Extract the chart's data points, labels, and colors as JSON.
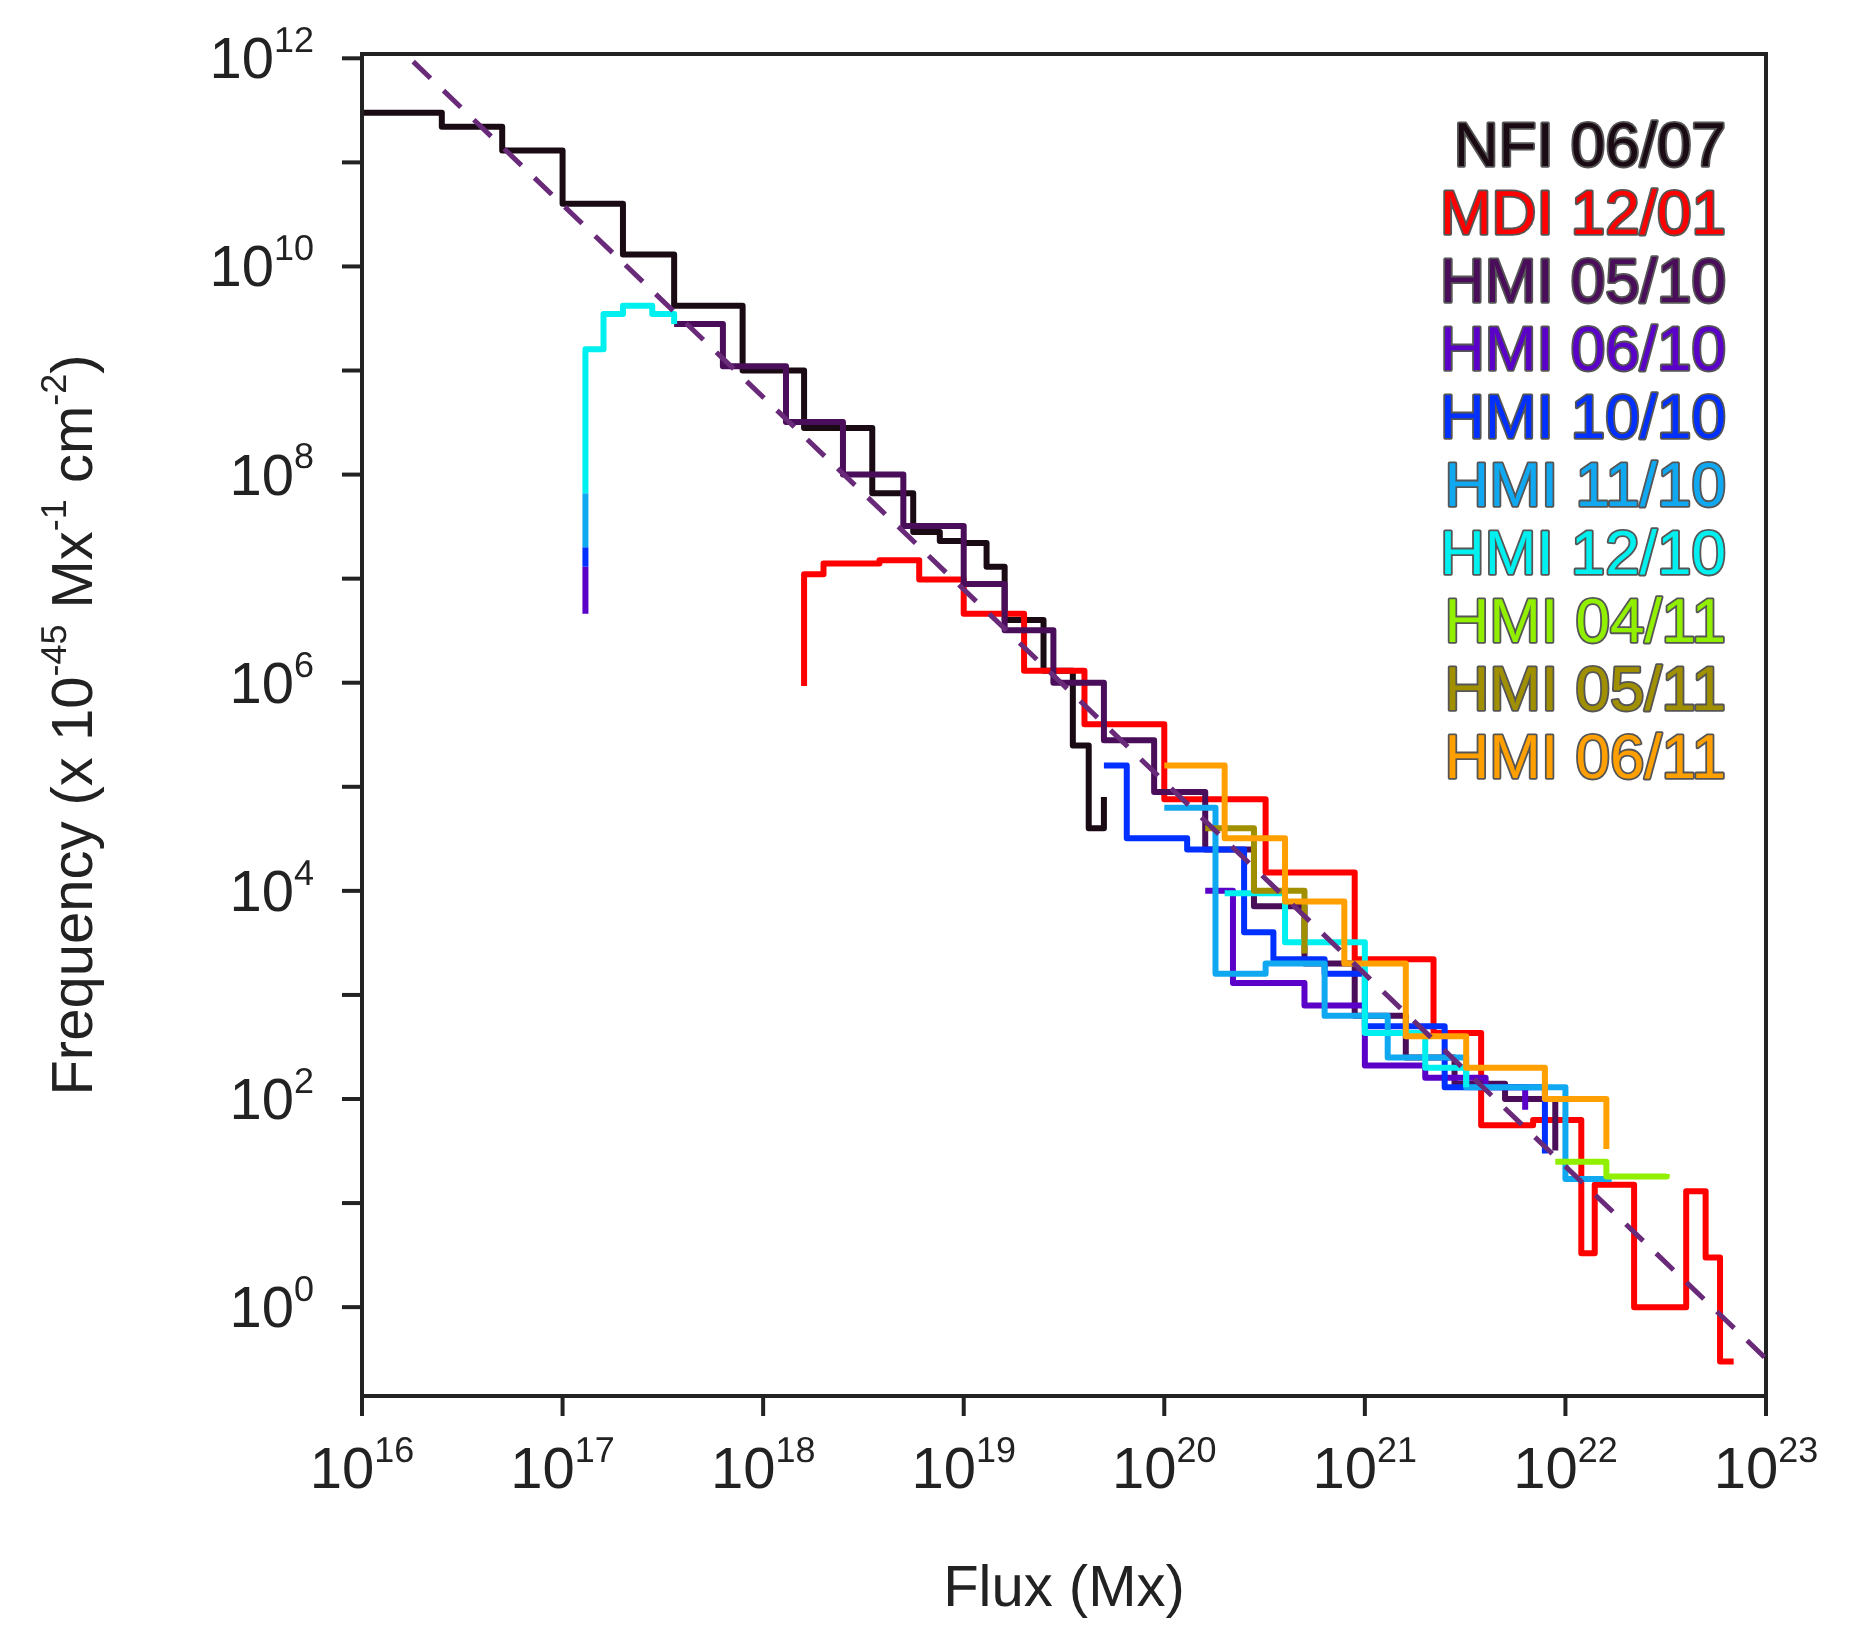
{
  "chart_data": {
    "type": "step",
    "xlabel": "Flux (Mx)",
    "ylabel": "Frequency (x 10$^{-45}$ Mx$^{-1}$ cm$^{-2}$)",
    "log": "xy",
    "xlim": [
      1e+16,
      1e+23
    ],
    "ylim": [
      0.14,
      1100000000000.0
    ],
    "xticks": [
      {
        "value": 1e+16,
        "label": "10$^{16}$"
      },
      {
        "value": 1e+17,
        "label": "10$^{17}$"
      },
      {
        "value": 1e+18,
        "label": "10$^{18}$"
      },
      {
        "value": 1e+19,
        "label": "10$^{19}$"
      },
      {
        "value": 1e+20,
        "label": "10$^{20}$"
      },
      {
        "value": 1e+21,
        "label": "10$^{21}$"
      },
      {
        "value": 1e+22,
        "label": "10$^{22}$"
      },
      {
        "value": 1e+23,
        "label": "10$^{23}$"
      }
    ],
    "yticks": [
      {
        "value": 1,
        "label": "10$^{0}$"
      },
      {
        "value": 10,
        "label": null
      },
      {
        "value": 100,
        "label": "10$^{2}$"
      },
      {
        "value": 1000,
        "label": null
      },
      {
        "value": 10000,
        "label": "10$^{4}$"
      },
      {
        "value": 100000,
        "label": null
      },
      {
        "value": 1000000,
        "label": "10$^{6}$"
      },
      {
        "value": 10000000,
        "label": null
      },
      {
        "value": 100000000,
        "label": "10$^{8}$"
      },
      {
        "value": 1000000000,
        "label": null
      },
      {
        "value": 10000000000,
        "label": "10$^{10}$"
      },
      {
        "value": 100000000000,
        "label": null
      },
      {
        "value": 1000000000000,
        "label": "10$^{12}$"
      }
    ],
    "series": [
      {
        "name": "NFI 06/07",
        "color": "#1a0a14",
        "x": [
          1e+16,
          1.6e+16,
          2.5e+16,
          5e+16,
          1e+17,
          2e+17,
          3.6e+17,
          7.9e+17,
          1.6e+18,
          3.5e+18,
          5.6e+18,
          7.6e+18,
          1e+19,
          1.3e+19,
          1.6e+19,
          2.5e+19,
          3.5e+19,
          4.2e+19,
          5e+19
        ],
        "values": [
          300000000000.0,
          300000000000.0,
          220000000000.0,
          130000000000.0,
          40000000000.0,
          13000000000.0,
          4200000000.0,
          1000000000.0,
          280000000.0,
          66000000.0,
          28000000.0,
          23000000.0,
          22000000.0,
          13000000.0,
          4000000.0,
          1300000.0,
          250000.0,
          40000.0,
          80000.0
        ]
      },
      {
        "name": "MDI 12/01",
        "color": "#ff0000",
        "x": [
          1.6e+18,
          1.6e+18,
          2e+18,
          3.8e+18,
          6e+18,
          1e+19,
          2e+19,
          4e+19,
          1e+20,
          3.2e+20,
          8.9e+20,
          2.2e+21,
          3.8e+21,
          6.9e+21,
          1.2e+22,
          1.4e+22,
          2.2e+22,
          4e+22,
          5e+22,
          5.9e+22,
          6.9e+22
        ],
        "values": [
          930000.0,
          11000000.0,
          14000000.0,
          15000000.0,
          9800000.0,
          4600000.0,
          1300000.0,
          400000.0,
          76000.0,
          15000.0,
          2200,
          430,
          56,
          63,
          3.3,
          15,
          1,
          13,
          3,
          0.3,
          0.3
        ]
      },
      {
        "name": "HMI 05/10",
        "color": "#4a0d5a",
        "x": [
          3.6e+17,
          6.3e+17,
          1.3e+18,
          2.5e+18,
          5e+18,
          1e+19,
          1.6e+19,
          2.8e+19,
          5e+19,
          8.9e+19,
          1.6e+20,
          2.8e+20,
          5e+20,
          8.9e+20,
          1.6e+21,
          2.8e+21,
          5e+21,
          8.9e+21
        ],
        "values": [
          2800000000.0,
          1100000000.0,
          320000000.0,
          100000000.0,
          32000000.0,
          8900000.0,
          3200000.0,
          1000000.0,
          280000.0,
          89000.0,
          25000.0,
          7100,
          2000,
          630,
          250,
          140,
          100,
          32
        ]
      },
      {
        "name": "HMI 06/10",
        "color": "#5a00c8",
        "x": [
          1.3e+17,
          1.3e+17,
          1e+19,
          1.6e+20,
          2.2e+20,
          5e+20,
          1e+21,
          2e+21,
          4e+21,
          6.3e+21
        ],
        "values": [
          4600000.0,
          13000000.0,
          null,
          10000.0,
          1300,
          790,
          210,
          160,
          130,
          79
        ]
      },
      {
        "name": "HMI 10/10",
        "color": "#0030ff",
        "x": [
          1.3e+17,
          1.3e+17,
          1e+19,
          5e+19,
          6.5e+19,
          1.3e+20,
          2.5e+20,
          3.5e+20,
          6.3e+20,
          1e+21,
          2.5e+21,
          5.5e+21,
          7.9e+21
        ],
        "values": [
          13000000.0,
          20000000.0,
          null,
          160000.0,
          32000.0,
          25000.0,
          4000,
          2200,
          1600,
          500,
          130,
          130,
          30
        ]
      },
      {
        "name": "HMI 11/10",
        "color": "#10a8f0",
        "x": [
          1.3e+17,
          1.3e+17,
          1e+19,
          1e+20,
          1.8e+20,
          3.2e+20,
          6.3e+20,
          1.3e+21,
          3.2e+21,
          1e+22,
          1e+22,
          1.7e+22
        ],
        "values": [
          20000000.0,
          66000000.0,
          null,
          63000.0,
          1600,
          2000,
          630,
          250,
          130,
          87,
          17,
          17
        ]
      },
      {
        "name": "HMI 12/10",
        "color": "#00f0f0",
        "x": [
          1.3e+17,
          1.3e+17,
          1.6e+17,
          2e+17,
          2.8e+17,
          3.6e+17,
          1e+19,
          2e+20,
          4e+20,
          1e+21,
          2e+21,
          3.2e+21
        ],
        "values": [
          66000000.0,
          1600000000.0,
          3500000000.0,
          4200000000.0,
          3500000000.0,
          2800000000.0,
          null,
          9500,
          3200,
          430,
          200,
          130
        ]
      },
      {
        "name": "HMI 04/11",
        "color": "#90f000",
        "x": [
          8.9e+21,
          1.6e+22,
          3.2e+22
        ],
        "values": [
          25,
          18,
          19
        ]
      },
      {
        "name": "HMI 05/11",
        "color": "#a09000",
        "x": [
          1.6e+20,
          2.8e+20,
          5e+20
        ],
        "values": [
          40000.0,
          10000.0,
          2500
        ]
      },
      {
        "name": "HMI 06/11",
        "color": "#ffa000",
        "x": [
          1e+20,
          2e+20,
          4e+20,
          7.9e+20,
          1.6e+21,
          3.2e+21,
          7.9e+21,
          1.6e+22
        ],
        "values": [
          160000.0,
          32000.0,
          7900,
          2000,
          400,
          200,
          100,
          33
        ]
      },
      {
        "type": "line",
        "color": "#6a2a7a",
        "line_style": "dashed",
        "x": [
          1.8e+16,
          1e+23
        ],
        "values": [
          930000000000.0,
          0.32
        ]
      }
    ]
  }
}
